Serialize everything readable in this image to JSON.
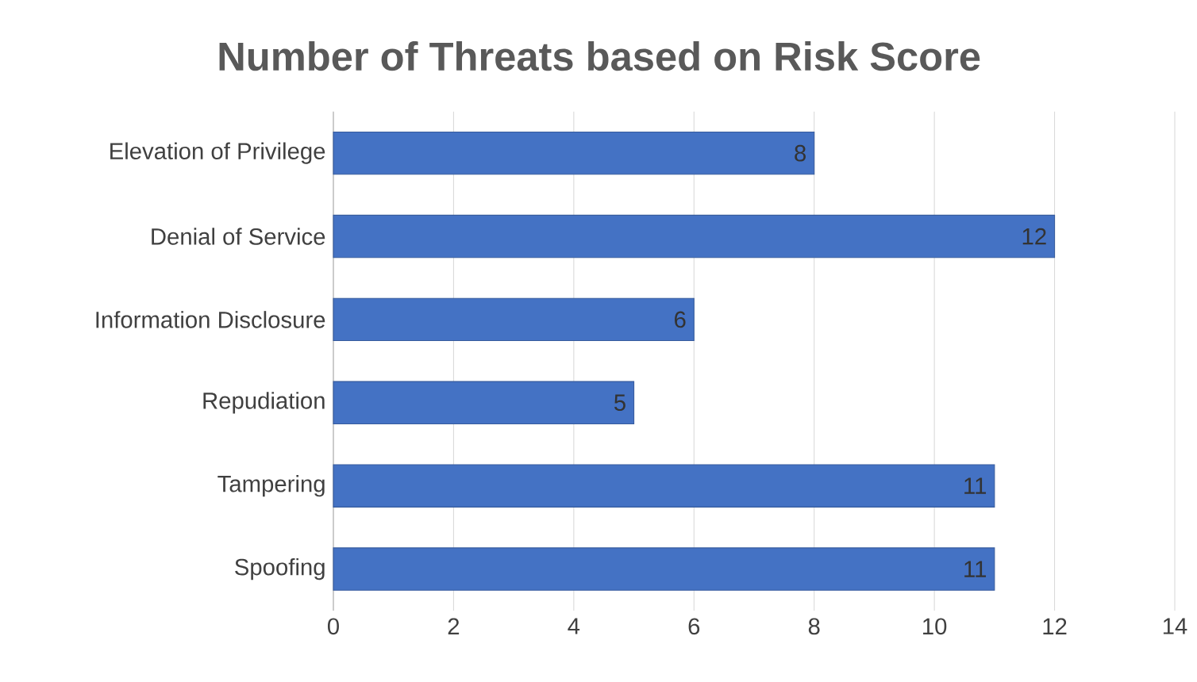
{
  "chart_data": {
    "type": "bar",
    "orientation": "horizontal",
    "title": "Number of Threats based on Risk Score",
    "categories": [
      "Elevation of Privilege",
      "Denial of Service",
      "Information Disclosure",
      "Repudiation",
      "Tampering",
      "Spoofing"
    ],
    "values": [
      8,
      12,
      6,
      5,
      11,
      11
    ],
    "color": "#4472c4",
    "xlim": [
      0,
      14
    ],
    "xticks": [
      0,
      2,
      4,
      6,
      8,
      10,
      12,
      14
    ],
    "grid": "x",
    "data_labels": true
  }
}
